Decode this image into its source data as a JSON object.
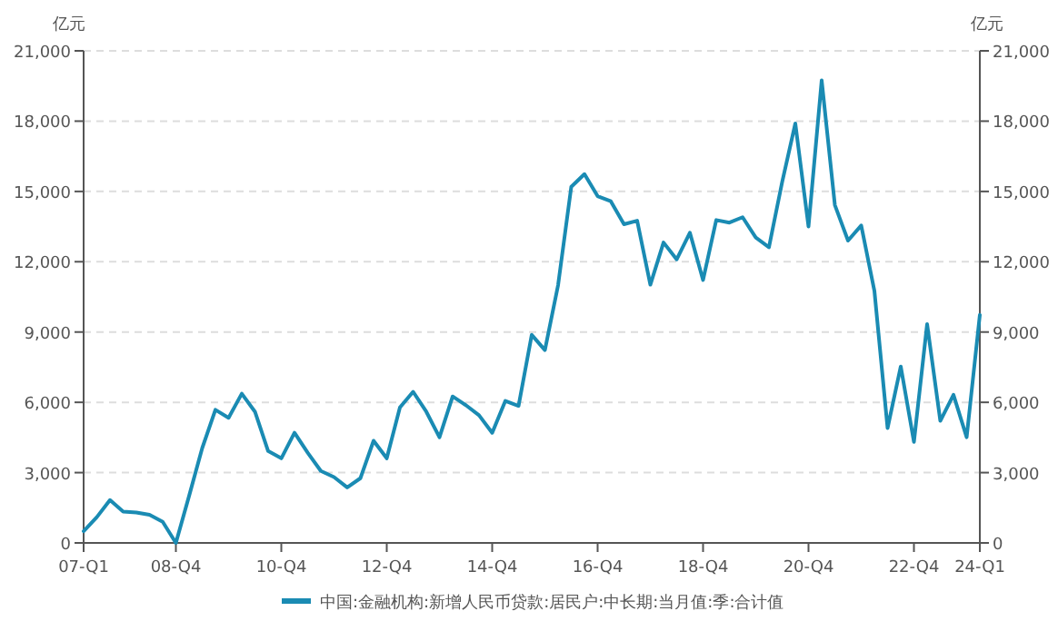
{
  "chart_data": {
    "type": "line",
    "ylabel": "亿元",
    "y2label": "亿元",
    "categories": [
      "07-Q1",
      null,
      null,
      null,
      null,
      null,
      null,
      "08-Q4",
      null,
      null,
      null,
      null,
      null,
      null,
      null,
      "10-Q4",
      null,
      null,
      null,
      null,
      null,
      null,
      null,
      "12-Q4",
      null,
      null,
      null,
      null,
      null,
      null,
      null,
      "14-Q4",
      null,
      null,
      null,
      null,
      null,
      null,
      null,
      "16-Q4",
      null,
      null,
      null,
      null,
      null,
      null,
      null,
      "18-Q4",
      null,
      null,
      null,
      null,
      null,
      null,
      null,
      "20-Q4",
      null,
      null,
      null,
      null,
      null,
      null,
      null,
      "22-Q4",
      null,
      null,
      null,
      null,
      "24-Q1"
    ],
    "series": [
      {
        "name": "中国:金融机构:新增人民币贷款:居民户:中长期:当月值:季:合计值",
        "color": "#1a8bb3",
        "values": [
          500,
          1100,
          1830,
          1340,
          1300,
          1200,
          900,
          0,
          2000,
          4050,
          5680,
          5340,
          6370,
          5600,
          3920,
          3610,
          4700,
          3850,
          3070,
          2810,
          2370,
          2760,
          4360,
          3610,
          5780,
          6450,
          5600,
          4510,
          6250,
          5880,
          5450,
          4700,
          6060,
          5850,
          8880,
          8230,
          11000,
          15200,
          15740,
          14800,
          14580,
          13600,
          13750,
          11020,
          12820,
          12100,
          13240,
          11220,
          13780,
          13670,
          13900,
          13030,
          12620,
          15400,
          17900,
          13500,
          19740,
          14420,
          12900,
          13550,
          10760,
          4900,
          7530,
          4310,
          9340,
          5210,
          6320,
          4510,
          9730
        ]
      }
    ],
    "ylim": [
      0,
      21000
    ],
    "yticks": [
      {
        "value": 0,
        "label": "0"
      },
      {
        "value": 3000,
        "label": "3,000"
      },
      {
        "value": 6000,
        "label": "6,000"
      },
      {
        "value": 9000,
        "label": "9,000"
      },
      {
        "value": 12000,
        "label": "12,000"
      },
      {
        "value": 15000,
        "label": "15,000"
      },
      {
        "value": 18000,
        "label": "18,000"
      },
      {
        "value": 21000,
        "label": "21,000"
      }
    ],
    "y2lim": [
      0,
      21000
    ],
    "y2ticks": [
      {
        "value": 0,
        "label": "0"
      },
      {
        "value": 3000,
        "label": "3,000"
      },
      {
        "value": 6000,
        "label": "6,000"
      },
      {
        "value": 9000,
        "label": "9,000"
      },
      {
        "value": 12000,
        "label": "12,000"
      },
      {
        "value": 15000,
        "label": "15,000"
      },
      {
        "value": 18000,
        "label": "18,000"
      },
      {
        "value": 21000,
        "label": "21,000"
      }
    ],
    "grid": "y",
    "legend": "bottom",
    "marker": "none",
    "line_style": "solid"
  }
}
